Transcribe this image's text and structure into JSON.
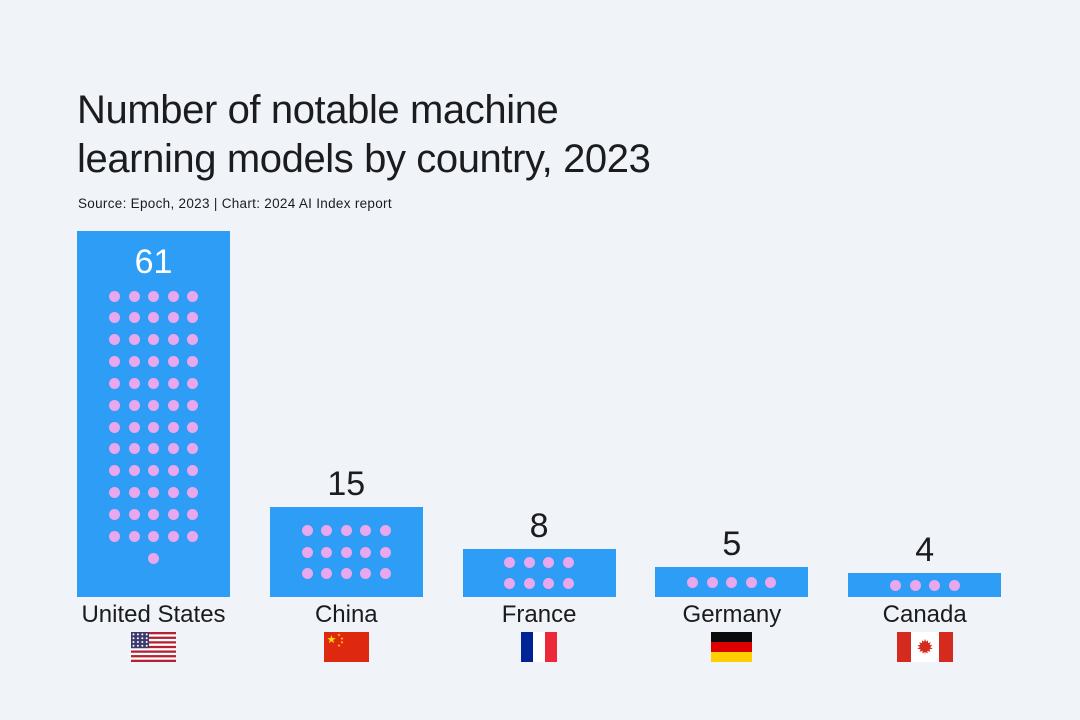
{
  "header": {
    "title_line1": "Number of notable machine",
    "title_line2": "learning models by country, 2023",
    "source": "Source: Epoch, 2023 | Chart: 2024 AI Index report"
  },
  "chart_data": {
    "type": "bar",
    "variant": "pictogram-bar (1 dot = 1 model, bar height proportional to value)",
    "title": "Number of notable machine learning models by country, 2023",
    "source": "Source: Epoch, 2023 | Chart: 2024 AI Index report",
    "xlabel": "",
    "ylabel": "",
    "legend": "none",
    "grid": "off",
    "categories": [
      "United States",
      "China",
      "France",
      "Germany",
      "Canada"
    ],
    "values": [
      61,
      15,
      8,
      5,
      4
    ],
    "countries": [
      {
        "id": "united-states",
        "label": "United States",
        "value": 61,
        "flag": "us-flag-icon",
        "dot_columns": 5,
        "value_label_inside": true
      },
      {
        "id": "china",
        "label": "China",
        "value": 15,
        "flag": "china-flag-icon",
        "dot_columns": 5,
        "value_label_inside": false
      },
      {
        "id": "france",
        "label": "France",
        "value": 8,
        "flag": "france-flag-icon",
        "dot_columns": 4,
        "value_label_inside": false
      },
      {
        "id": "germany",
        "label": "Germany",
        "value": 5,
        "flag": "germany-flag-icon",
        "dot_columns": 5,
        "value_label_inside": false
      },
      {
        "id": "canada",
        "label": "Canada",
        "value": 4,
        "flag": "canada-flag-icon",
        "dot_columns": 4,
        "value_label_inside": false
      }
    ],
    "colors": {
      "background": "#F0F4F9",
      "bar": "#2E9DF6",
      "dot": "#E9A7EE",
      "title_text": "#1C1C1E",
      "value_label_inside": "#FFFFFF",
      "value_label_outside": "#1C1C1E"
    }
  }
}
